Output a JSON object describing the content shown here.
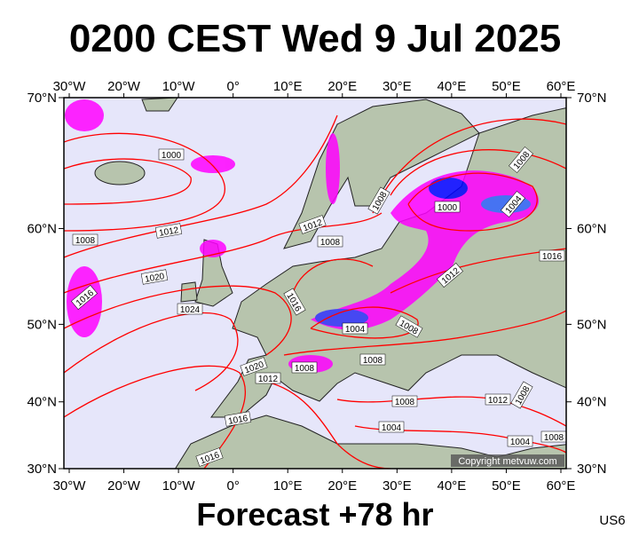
{
  "title": "0200 CEST Wed 9 Jul 2025",
  "footer": {
    "forecast": "Forecast +78 hr",
    "code": "US6",
    "copyright": "Copyright metvuw.com"
  },
  "map": {
    "lon_ticks": [
      {
        "value": -30,
        "label": "30°W"
      },
      {
        "value": -20,
        "label": "20°W"
      },
      {
        "value": -10,
        "label": "10°W"
      },
      {
        "value": 0,
        "label": "0°"
      },
      {
        "value": 10,
        "label": "10°E"
      },
      {
        "value": 20,
        "label": "20°E"
      },
      {
        "value": 30,
        "label": "30°E"
      },
      {
        "value": 40,
        "label": "40°E"
      },
      {
        "value": 50,
        "label": "50°E"
      },
      {
        "value": 60,
        "label": "60°E"
      }
    ],
    "lat_ticks": [
      {
        "value": 70,
        "label": "70°N"
      },
      {
        "value": 60,
        "label": "60°N"
      },
      {
        "value": 50,
        "label": "50°N"
      },
      {
        "value": 40,
        "label": "40°N"
      },
      {
        "value": 30,
        "label": "30°N"
      }
    ],
    "isobar_labels": [
      1000,
      1008,
      1008,
      1000,
      1004,
      1012,
      1008,
      1008,
      1012,
      1016,
      1020,
      1016,
      1012,
      1016,
      1024,
      1004,
      1008,
      1008,
      1020,
      1008,
      1012,
      1012,
      1008,
      1008,
      1016,
      1004,
      1004,
      1008,
      1016
    ]
  }
}
